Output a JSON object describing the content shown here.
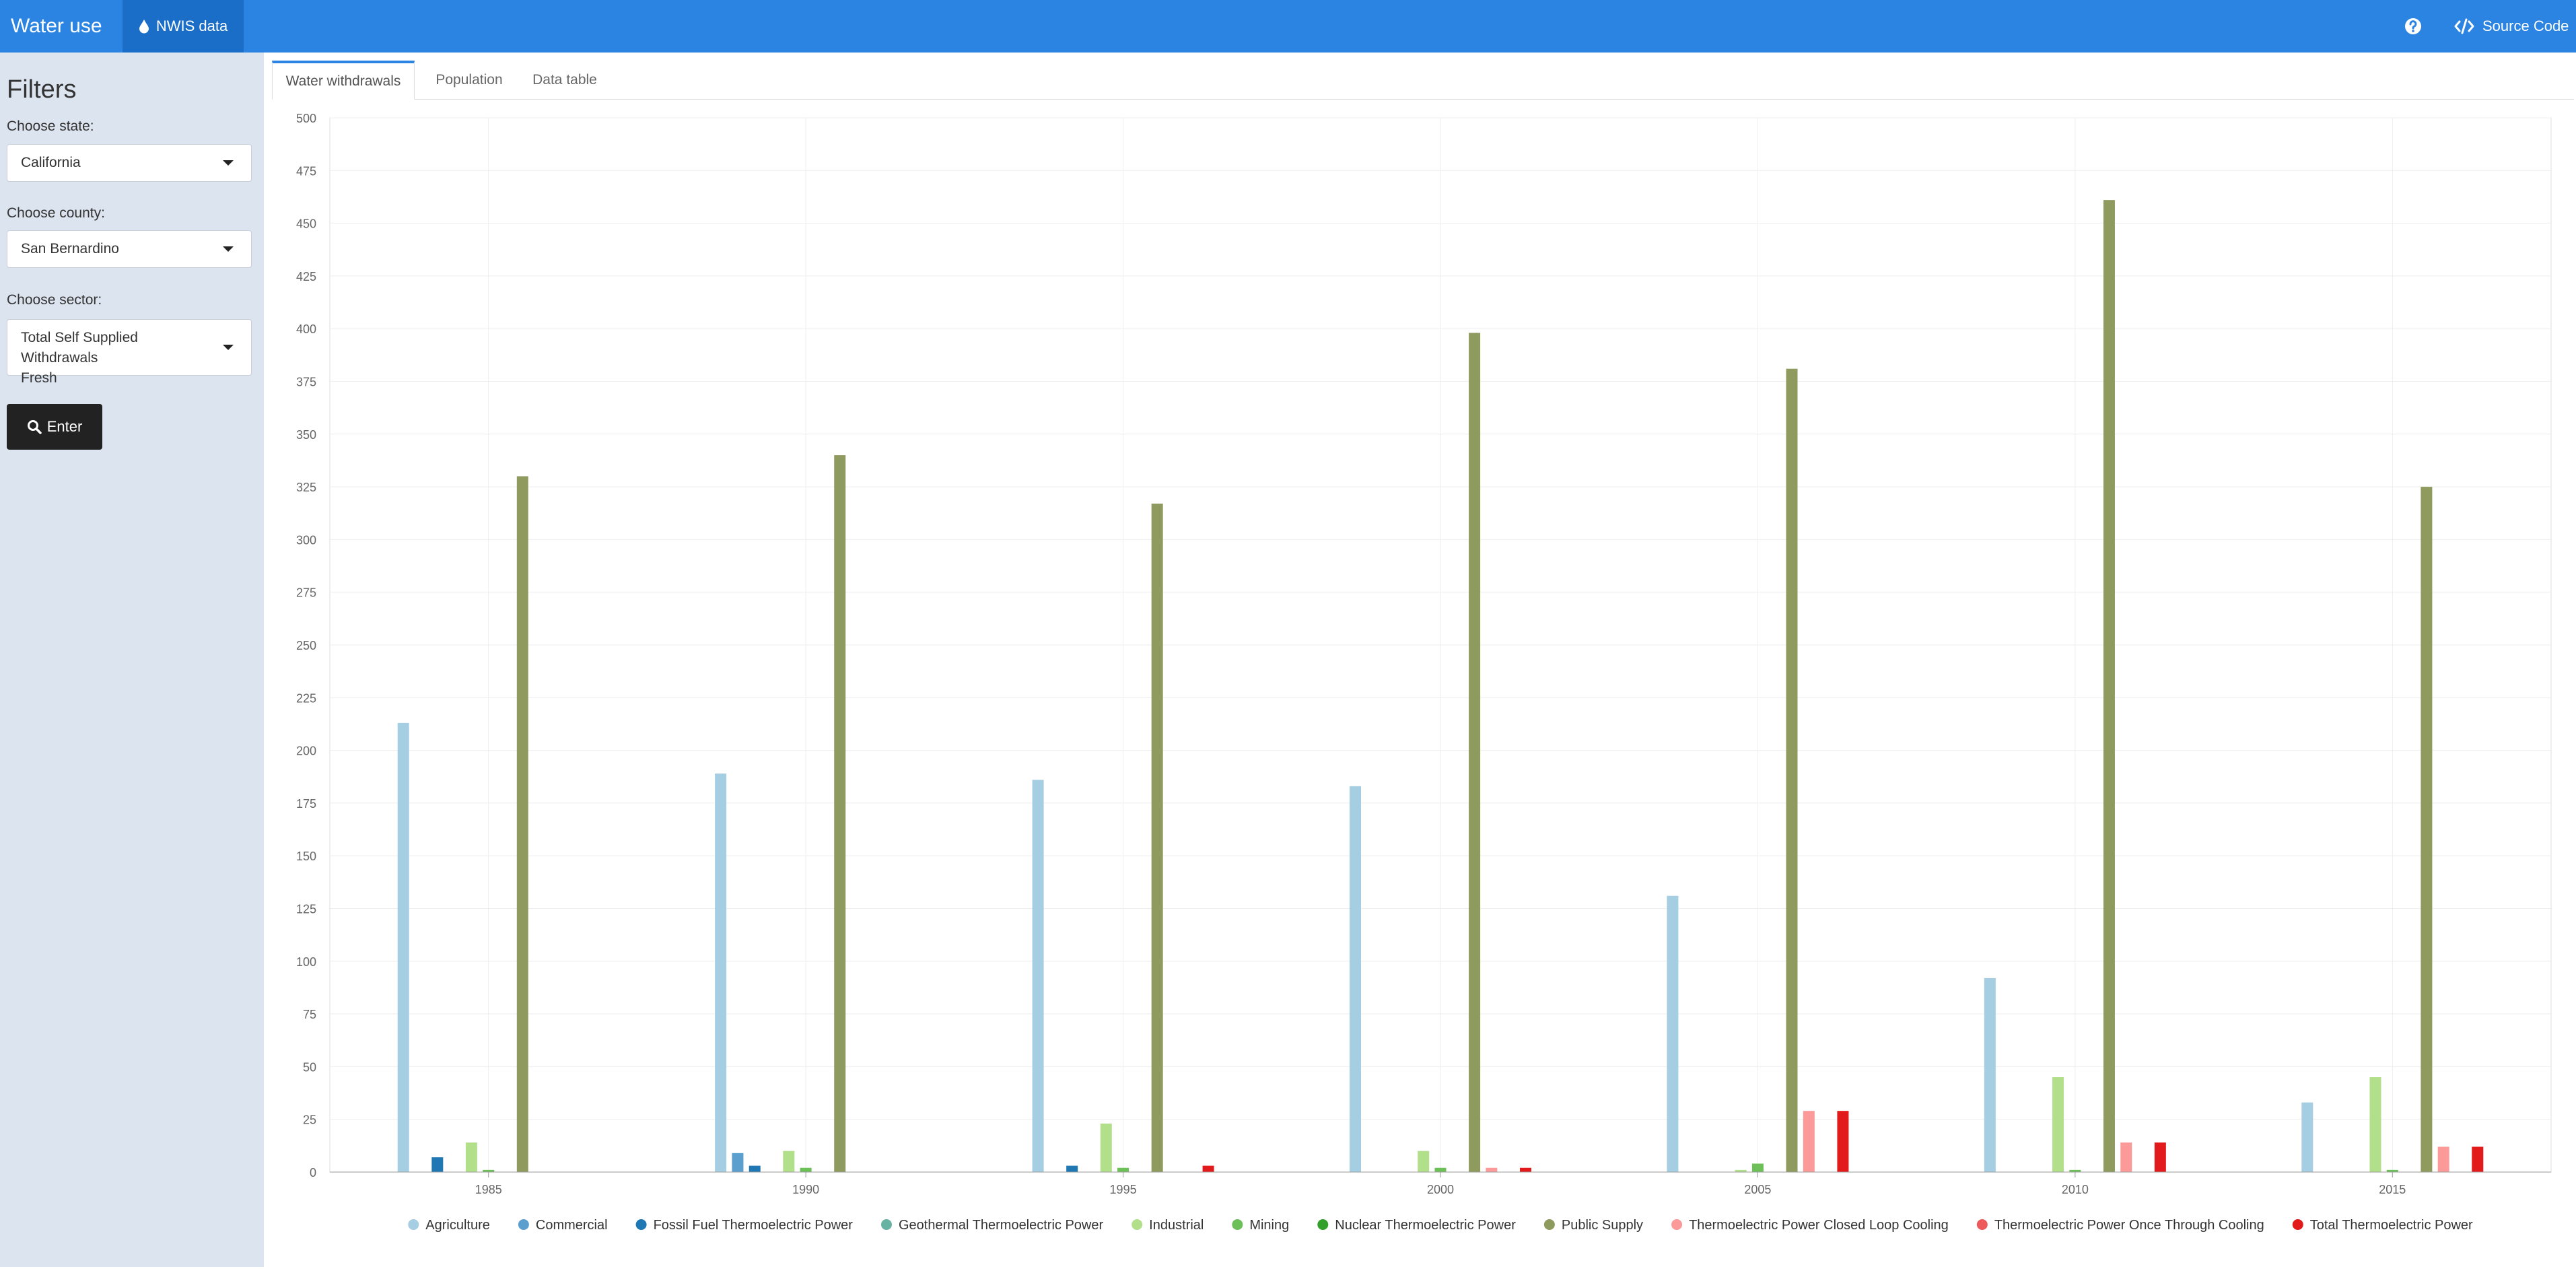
{
  "navbar": {
    "brand": "Water use",
    "nav_tab_label": "NWIS data",
    "help_icon": "question-circle-icon",
    "source_label": "Source Code",
    "accent_color": "#2b84e2"
  },
  "sidebar": {
    "title": "Filters",
    "state_label": "Choose state:",
    "state_value": "California",
    "county_label": "Choose county:",
    "county_value": "San Bernardino",
    "sector_label": "Choose sector:",
    "sector_value_line1": "Total Self Supplied Withdrawals",
    "sector_value_line2": "Fresh",
    "enter_label": "Enter"
  },
  "tabs": [
    {
      "label": "Water withdrawals",
      "active": true
    },
    {
      "label": "Population",
      "active": false
    },
    {
      "label": "Data table",
      "active": false
    }
  ],
  "chart_data": {
    "type": "bar",
    "title": "",
    "xlabel": "",
    "ylabel": "",
    "ylim": [
      0,
      500
    ],
    "yticks": [
      0,
      25,
      50,
      75,
      100,
      125,
      150,
      175,
      200,
      225,
      250,
      275,
      300,
      325,
      350,
      375,
      400,
      425,
      450,
      475,
      500
    ],
    "categories": [
      "1985",
      "1990",
      "1995",
      "2000",
      "2005",
      "2010",
      "2015"
    ],
    "grid": true,
    "legend_position": "bottom",
    "series": [
      {
        "name": "Agriculture",
        "color": "#a6cee3",
        "values": [
          213,
          189,
          186,
          183,
          131,
          92,
          33
        ]
      },
      {
        "name": "Commercial",
        "color": "#5b9fcf",
        "values": [
          0,
          9,
          0,
          0,
          0,
          0,
          0
        ]
      },
      {
        "name": "Fossil Fuel Thermoelectric Power",
        "color": "#1f78b4",
        "values": [
          7,
          3,
          3,
          0,
          0,
          0,
          0
        ]
      },
      {
        "name": "Geothermal Thermoelectric Power",
        "color": "#66b2a3",
        "values": [
          0,
          0,
          0,
          0,
          0,
          0,
          0
        ]
      },
      {
        "name": "Industrial",
        "color": "#b2df8a",
        "values": [
          14,
          10,
          23,
          10,
          1,
          45,
          45
        ]
      },
      {
        "name": "Mining",
        "color": "#6dbf58",
        "values": [
          1,
          2,
          2,
          2,
          4,
          1,
          1
        ]
      },
      {
        "name": "Nuclear Thermoelectric Power",
        "color": "#33a02c",
        "values": [
          0,
          0,
          0,
          0,
          0,
          0,
          0
        ]
      },
      {
        "name": "Public Supply",
        "color": "#8f9a5f",
        "values": [
          330,
          340,
          317,
          398,
          381,
          461,
          325
        ]
      },
      {
        "name": "Thermoelectric Power Closed Loop Cooling",
        "color": "#fb9a99",
        "values": [
          0,
          0,
          0,
          2,
          29,
          14,
          12
        ]
      },
      {
        "name": "Thermoelectric Power Once Through Cooling",
        "color": "#ec5a5c",
        "values": [
          0,
          0,
          0,
          0,
          0,
          0,
          0
        ]
      },
      {
        "name": "Total Thermoelectric Power",
        "color": "#e31a1c",
        "values": [
          0,
          0,
          3,
          2,
          29,
          14,
          12
        ]
      }
    ]
  }
}
